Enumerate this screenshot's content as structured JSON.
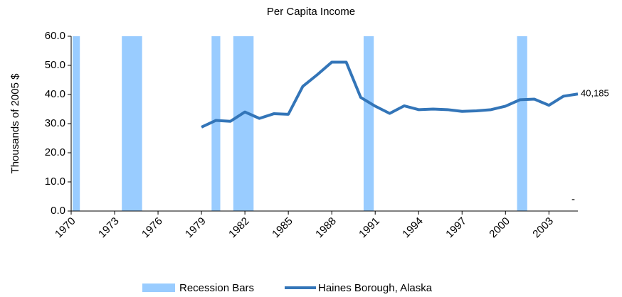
{
  "chart_data": {
    "type": "line",
    "title": "Per Capita Income",
    "y_label": "Thousands of 2005 $",
    "xlim": [
      1970,
      2005
    ],
    "xticks": [
      1970,
      1973,
      1976,
      1979,
      1982,
      1985,
      1988,
      1991,
      1994,
      1997,
      2000,
      2003
    ],
    "ylim": [
      0,
      60
    ],
    "yticks": [
      {
        "value": 0,
        "label": "0.0"
      },
      {
        "value": 10,
        "label": "10.0"
      },
      {
        "value": 20,
        "label": "20.0"
      },
      {
        "value": 30,
        "label": "30.0"
      },
      {
        "value": 40,
        "label": "40.0"
      },
      {
        "value": 50,
        "label": "50.0"
      },
      {
        "value": 60,
        "label": "60.0"
      }
    ],
    "recessions": {
      "name": "Recession Bars",
      "color": "#99ccff",
      "periods": [
        [
          1970.1,
          1970.6
        ],
        [
          1973.5,
          1974.9
        ],
        [
          1979.7,
          1980.3
        ],
        [
          1981.2,
          1982.6
        ],
        [
          1990.2,
          1990.9
        ],
        [
          2000.8,
          2001.5
        ]
      ]
    },
    "series": [
      {
        "name": "Haines Borough, Alaska",
        "color": "#3375b8",
        "x": [
          1979,
          1980,
          1981,
          1982,
          1983,
          1984,
          1985,
          1986,
          1987,
          1988,
          1989,
          1990,
          1991,
          1992,
          1993,
          1994,
          1995,
          1996,
          1997,
          1998,
          1999,
          2000,
          2001,
          2002,
          2003,
          2004,
          2005
        ],
        "values": [
          28.8,
          31.1,
          30.8,
          34.0,
          31.8,
          33.4,
          33.2,
          42.8,
          46.8,
          51.1,
          51.1,
          39.0,
          36.0,
          33.5,
          36.1,
          34.8,
          35.0,
          34.8,
          34.2,
          34.4,
          34.8,
          36.0,
          38.2,
          38.4,
          36.3,
          39.4,
          40.185
        ],
        "value_labels": [
          null,
          null,
          null,
          null,
          null,
          null,
          null,
          null,
          null,
          null,
          null,
          null,
          null,
          null,
          null,
          null,
          null,
          null,
          null,
          null,
          null,
          null,
          null,
          null,
          null,
          null,
          "40,185"
        ]
      }
    ],
    "annotation": "-"
  }
}
